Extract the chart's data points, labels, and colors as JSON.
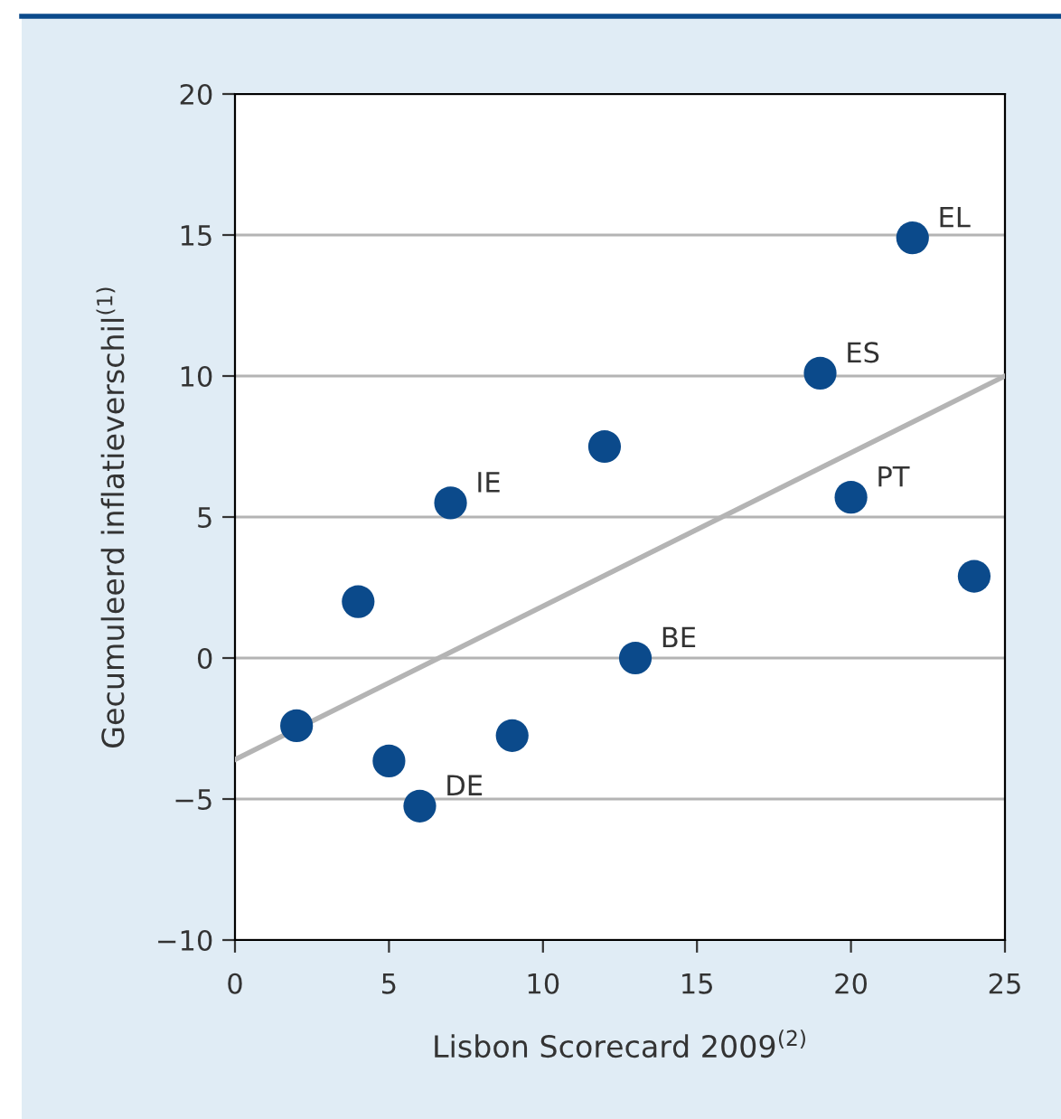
{
  "chart_data": {
    "type": "scatter",
    "xlabel": "Lisbon Scorecard 2009$^{(2)}$",
    "ylabel": "Gecumuleerd inflatieverschil$^{(1)}$",
    "xlim": [
      0,
      25
    ],
    "xticks": [
      0,
      5,
      10,
      15,
      20,
      25
    ],
    "ylim": [
      -10,
      20
    ],
    "yticks": [
      {
        "value": -10,
        "label": "−10"
      },
      {
        "value": -5,
        "label": "−5"
      },
      0,
      5,
      10,
      15,
      20
    ],
    "grid": "y",
    "legend": false,
    "marker": "circle",
    "series": [
      {
        "color": "#0b4a8b",
        "x": [
          2,
          4,
          5,
          6,
          7,
          9,
          12,
          13,
          19,
          20,
          22,
          24
        ],
        "values": [
          -2.4,
          2.0,
          -3.65,
          -5.25,
          5.5,
          -2.75,
          7.5,
          0,
          10.1,
          5.7,
          14.9,
          2.9
        ]
      },
      {
        "type": "line",
        "color": "#b4b4b4",
        "line_style": "solid",
        "marker": "none",
        "x": [
          0,
          25
        ],
        "values": [
          -3.6,
          10.0
        ]
      }
    ],
    "annotations": [
      {
        "text": "EL",
        "x": 22,
        "y": 14.9
      },
      {
        "text": "ES",
        "x": 19,
        "y": 10.1
      },
      {
        "text": "IE",
        "x": 7,
        "y": 5.5
      },
      {
        "text": "PT",
        "x": 20,
        "y": 5.7
      },
      {
        "text": "BE",
        "x": 13,
        "y": 0
      },
      {
        "text": "DE",
        "x": 6,
        "y": -5.25
      }
    ]
  }
}
